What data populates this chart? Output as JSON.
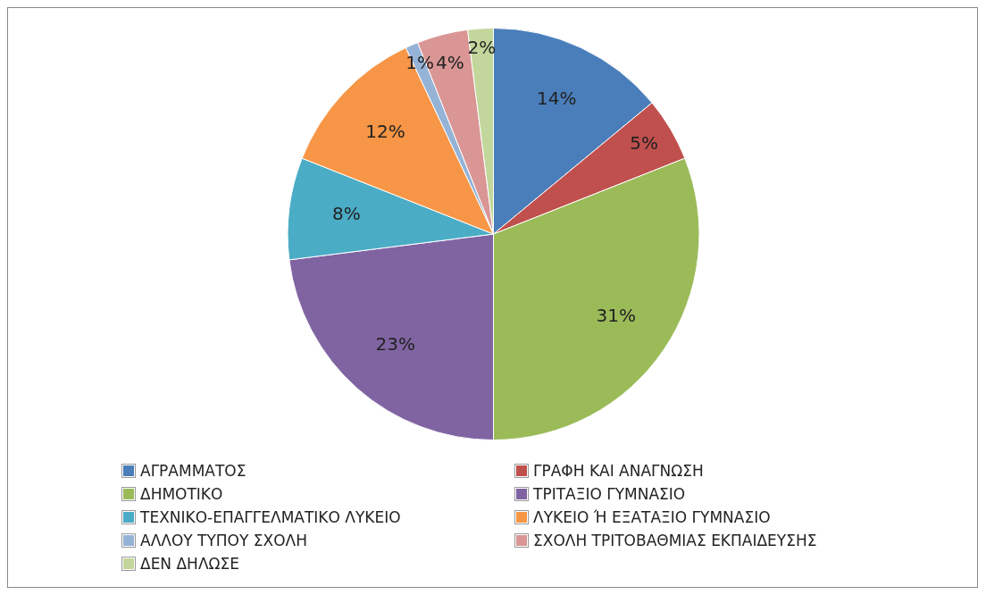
{
  "chart_data": {
    "type": "pie",
    "categories": [
      "ΑΓΡΑΜΜΑΤΟΣ",
      "ΓΡΑΦΗ ΚΑΙ ΑΝΑΓΝΩΣΗ",
      "ΔΗΜΟΤΙΚΟ",
      "ΤΡΙΤΑΞΙΟ ΓΥΜΝΑΣΙΟ",
      "ΤΕΧΝΙΚΟ-ΕΠΑΓΓΕΛΜΑΤΙΚΟ ΛΥΚΕΙΟ",
      "ΛΥΚΕΙΟ Ή ΕΞΑΤΑΞΙΟ ΓΥΜΝΑΣΙΟ",
      "ΑΛΛΟΥ ΤΥΠΟΥ ΣΧΟΛΗ",
      "ΣΧΟΛΗ ΤΡΙΤΟΒΑΘΜΙΑΣ ΕΚΠΑΙΔΕΥΣΗΣ",
      "ΔΕΝ ΔΗΛΩΣΕ"
    ],
    "values": [
      14,
      5,
      31,
      23,
      8,
      12,
      1,
      4,
      2
    ],
    "value_labels": [
      "14%",
      "5%",
      "31%",
      "23%",
      "8%",
      "12%",
      "1%",
      "4%",
      "2%"
    ],
    "colors": [
      "#4a7ebb",
      "#c0504d",
      "#9bbb59",
      "#8064a2",
      "#4bacc6",
      "#f79646",
      "#95b3d7",
      "#d99694",
      "#c3d69b"
    ],
    "legend": "bottom"
  }
}
